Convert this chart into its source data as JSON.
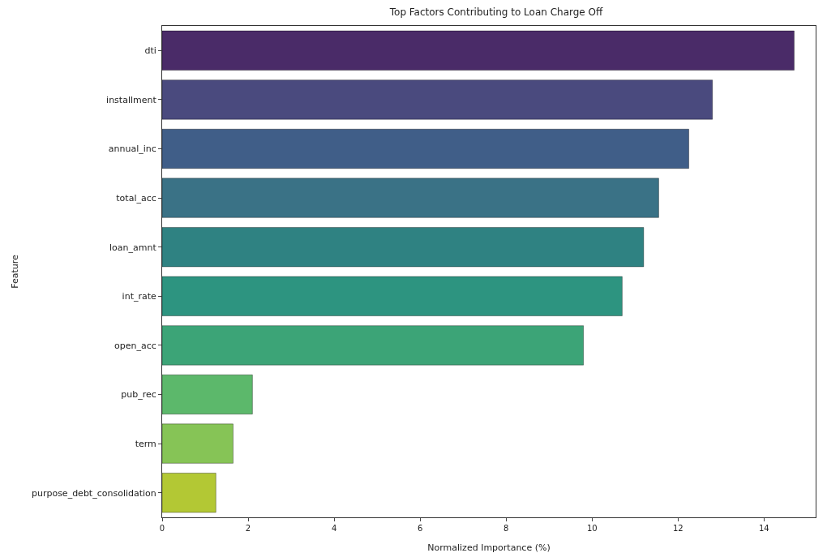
{
  "chart_data": {
    "type": "bar",
    "orientation": "horizontal",
    "title": "Top Factors Contributing to Loan Charge Off",
    "xlabel": "Normalized Importance (%)",
    "ylabel": "Feature",
    "categories": [
      "dti",
      "installment",
      "annual_inc",
      "total_acc",
      "loan_amnt",
      "int_rate",
      "open_acc",
      "pub_rec",
      "term",
      "purpose_debt_consolidation"
    ],
    "values": [
      14.7,
      12.8,
      12.25,
      11.55,
      11.2,
      10.7,
      9.8,
      2.1,
      1.65,
      1.25
    ],
    "colors": [
      "#4a2b68",
      "#4a4a7e",
      "#405e88",
      "#3a7286",
      "#2f8282",
      "#2d9480",
      "#3ca477",
      "#5cb86b",
      "#86c456",
      "#b3c834"
    ],
    "xlim": [
      0,
      15.2
    ],
    "xticks": [
      0,
      2,
      4,
      6,
      8,
      10,
      12,
      14
    ],
    "grid": false
  }
}
